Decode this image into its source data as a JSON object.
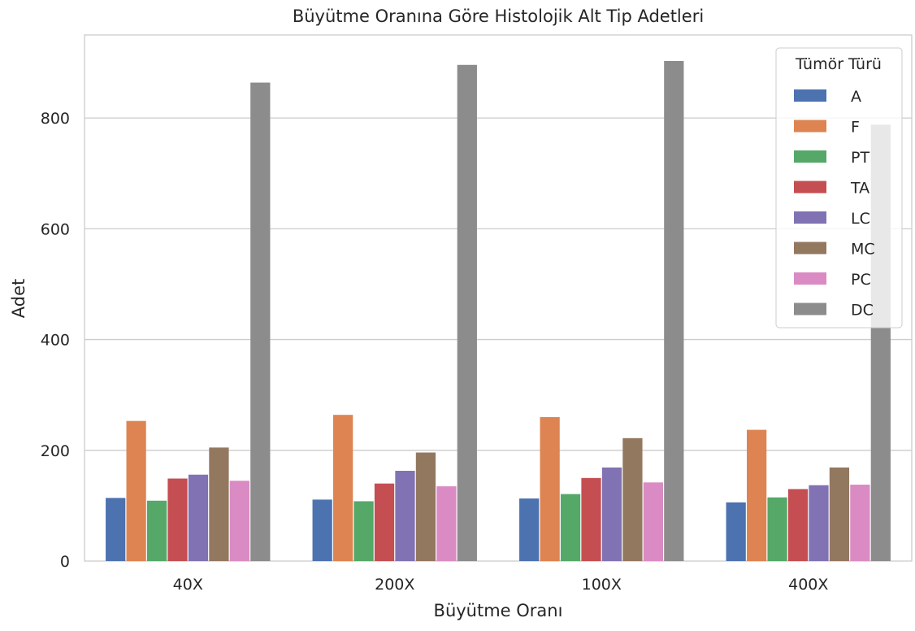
{
  "chart_data": {
    "type": "bar",
    "title": "Büyütme Oranına Göre Histolojik Alt Tip Adetleri",
    "xlabel": "Büyütme Oranı",
    "ylabel": "Adet",
    "categories": [
      "40X",
      "200X",
      "100X",
      "400X"
    ],
    "ylim": [
      0,
      950
    ],
    "yticks": [
      0,
      200,
      400,
      600,
      800
    ],
    "grid": true,
    "legend": {
      "title": "Tümör Türü",
      "position": "top-right"
    },
    "series": [
      {
        "name": "A",
        "color": "#4c72b0",
        "values": [
          114,
          111,
          113,
          106
        ]
      },
      {
        "name": "F",
        "color": "#dd8452",
        "values": [
          253,
          264,
          260,
          237
        ]
      },
      {
        "name": "PT",
        "color": "#55a868",
        "values": [
          109,
          108,
          121,
          115
        ]
      },
      {
        "name": "TA",
        "color": "#c44e52",
        "values": [
          149,
          140,
          150,
          130
        ]
      },
      {
        "name": "LC",
        "color": "#8172b3",
        "values": [
          156,
          163,
          169,
          137
        ]
      },
      {
        "name": "MC",
        "color": "#937860",
        "values": [
          205,
          196,
          222,
          169
        ]
      },
      {
        "name": "PC",
        "color": "#da8bc3",
        "values": [
          145,
          135,
          142,
          138
        ]
      },
      {
        "name": "DC",
        "color": "#8c8c8c",
        "values": [
          864,
          896,
          903,
          788
        ]
      }
    ]
  }
}
